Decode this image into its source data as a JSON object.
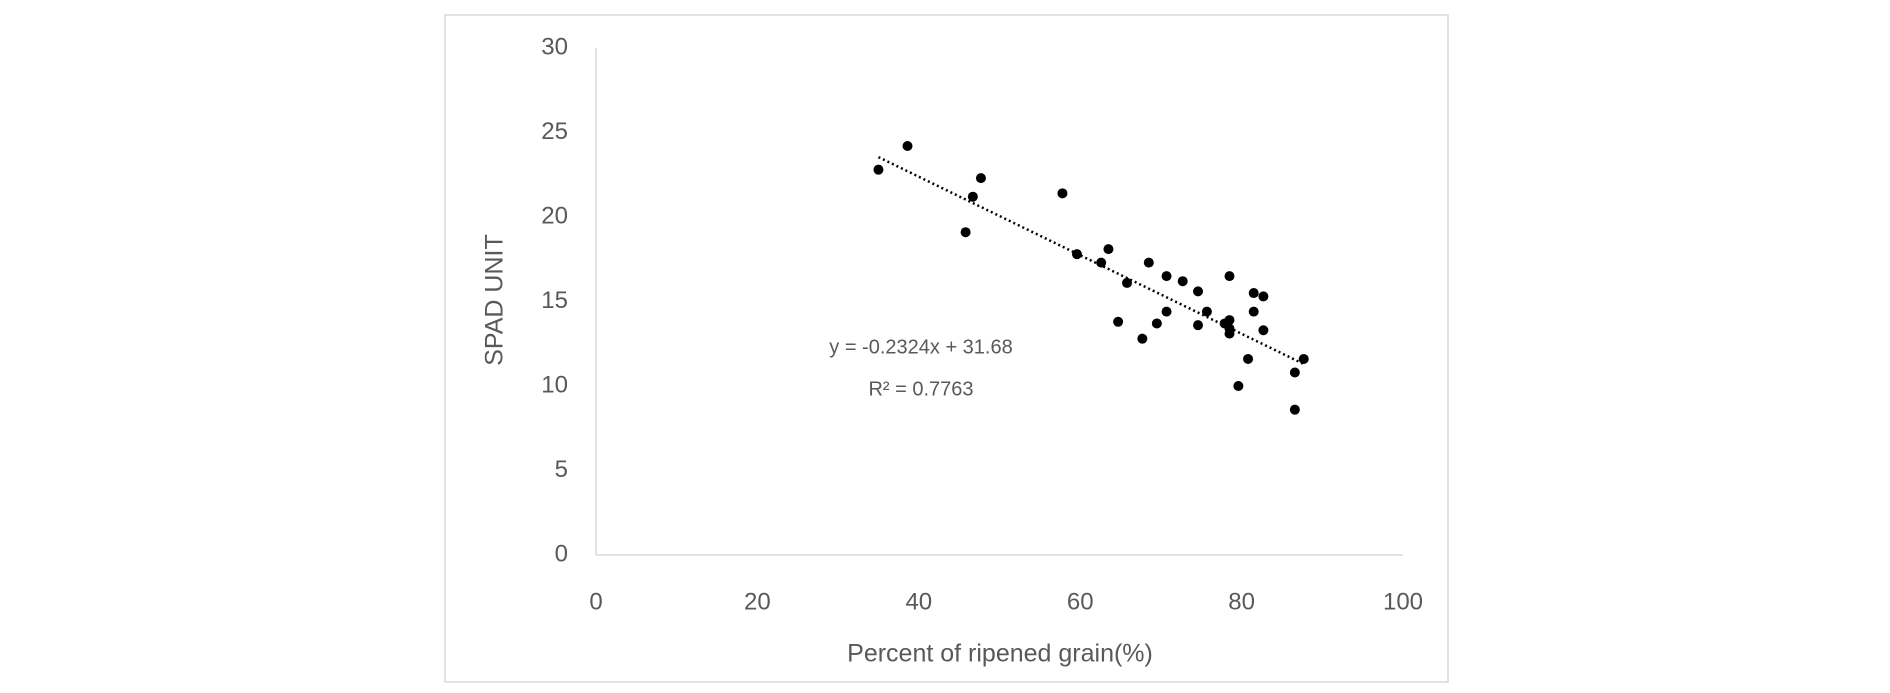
{
  "chart_data": {
    "type": "scatter",
    "x_label": "Percent of ripened grain(%)",
    "y_label": "SPAD UNIT",
    "x": [
      35,
      38.6,
      45.8,
      46.7,
      47.7,
      57.8,
      59.6,
      62.6,
      63.5,
      64.7,
      65.8,
      67.7,
      68.5,
      69.5,
      70.7,
      70.7,
      72.7,
      74.6,
      74.6,
      75.7,
      77.9,
      78.5,
      78.5,
      78.5,
      78.5,
      79.6,
      80.8,
      81.5,
      81.5,
      82.7,
      82.7,
      86.6,
      86.6,
      87.7
    ],
    "values": [
      22.8,
      24.2,
      19.1,
      21.2,
      22.3,
      21.4,
      17.8,
      17.3,
      18.1,
      13.8,
      16.1,
      12.8,
      17.3,
      13.7,
      16.5,
      14.4,
      16.2,
      15.6,
      13.6,
      14.4,
      13.7,
      16.5,
      13.9,
      13.4,
      13.1,
      10.0,
      11.6,
      15.5,
      14.4,
      15.3,
      13.3,
      10.8,
      8.6,
      11.6
    ],
    "color": "#000000",
    "trendline": {
      "slope": -0.2324,
      "intercept": 31.68,
      "color": "#000000"
    },
    "annotations": [
      "y = -0.2324x + 31.68",
      "R² = 0.7763"
    ],
    "xlim": [
      0,
      100
    ],
    "xticks": [
      0,
      20,
      40,
      60,
      80,
      100
    ],
    "ylim": [
      0,
      30
    ],
    "yticks": [
      0,
      5,
      10,
      15,
      20,
      25,
      30
    ],
    "grid": false
  }
}
